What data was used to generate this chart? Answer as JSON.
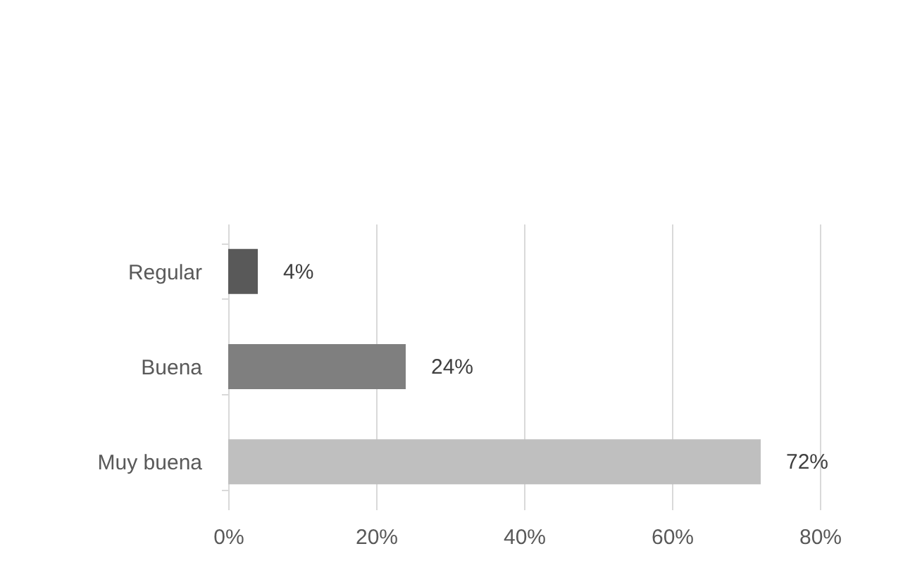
{
  "chart_data": {
    "type": "bar",
    "orientation": "horizontal",
    "categories": [
      "Regular",
      "Buena",
      "Muy buena"
    ],
    "values": [
      4,
      24,
      72
    ],
    "colors": [
      "#595959",
      "#7f7f7f",
      "#bfbfbf"
    ],
    "value_labels": [
      "4%",
      "24%",
      "72%"
    ],
    "xlim": [
      0,
      80
    ],
    "xticks": [
      {
        "value": 0,
        "label": "0%"
      },
      {
        "value": 20,
        "label": "20%"
      },
      {
        "value": 40,
        "label": "40%"
      },
      {
        "value": 60,
        "label": "60%"
      },
      {
        "value": 80,
        "label": "80%"
      }
    ],
    "grid": "x"
  }
}
